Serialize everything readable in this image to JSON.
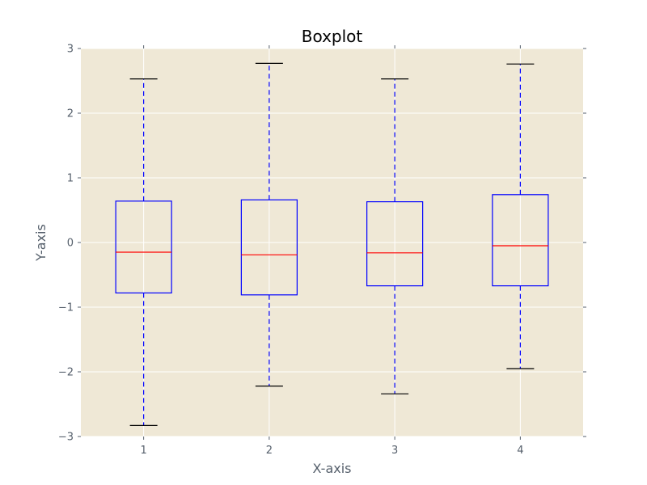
{
  "chart_data": {
    "type": "boxplot",
    "title": "Boxplot",
    "xlabel": "X-axis",
    "ylabel": "Y-axis",
    "ylim": [
      -3,
      3
    ],
    "yticks": [
      3,
      2,
      1,
      0,
      -1,
      -2,
      -3
    ],
    "ytick_labels": [
      "3",
      "2",
      "1",
      "0",
      "−1",
      "−2",
      "−3"
    ],
    "grid": true,
    "categories": [
      "1",
      "2",
      "3",
      "4"
    ],
    "boxes": [
      {
        "whisker_low": -2.83,
        "q1": -0.78,
        "median": -0.15,
        "q3": 0.64,
        "whisker_high": 2.53
      },
      {
        "whisker_low": -2.22,
        "q1": -0.81,
        "median": -0.19,
        "q3": 0.66,
        "whisker_high": 2.77
      },
      {
        "whisker_low": -2.34,
        "q1": -0.67,
        "median": -0.16,
        "q3": 0.63,
        "whisker_high": 2.53
      },
      {
        "whisker_low": -1.95,
        "q1": -0.67,
        "median": -0.05,
        "q3": 0.74,
        "whisker_high": 2.76
      }
    ],
    "colors": {
      "plot_background": "#efe8d6",
      "grid": "#ffffff",
      "box": "#0000ff",
      "whisker": "#0000ff",
      "cap": "#000000",
      "median": "#ff0000",
      "tick": "#555f6b"
    }
  }
}
